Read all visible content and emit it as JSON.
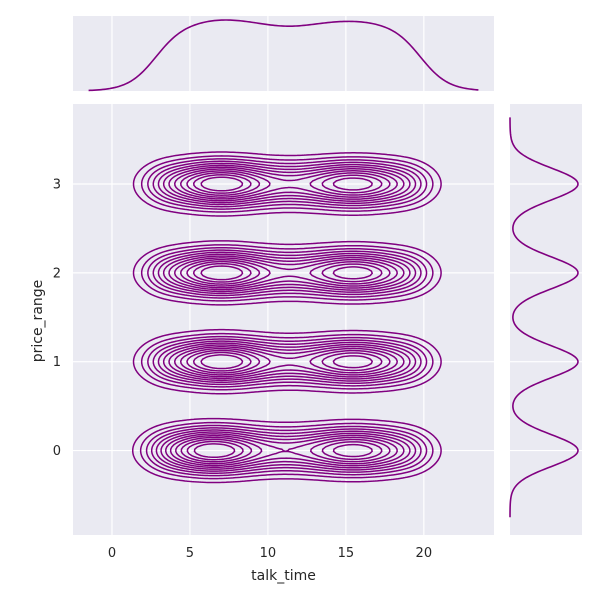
{
  "chart_data": {
    "type": "kde-jointplot",
    "x_variable": "talk_time",
    "y_variable": "price_range",
    "xlabel": "talk_time",
    "ylabel": "price_range",
    "xlim": [
      -2.5,
      24.5
    ],
    "ylim": [
      -0.95,
      3.9
    ],
    "x_ticks": [
      0,
      5,
      10,
      15,
      20
    ],
    "y_ticks": [
      0,
      1,
      2,
      3
    ],
    "grid": true,
    "background": "#eaeaf2",
    "line_color": "#800080",
    "contour_levels": 12,
    "price_range_levels": [
      0,
      1,
      2,
      3
    ],
    "joint_density_peaks": [
      {
        "price_range": 0,
        "talk_time": [
          6.5,
          15.5
        ]
      },
      {
        "price_range": 1,
        "talk_time": [
          7.0,
          15.5
        ]
      },
      {
        "price_range": 2,
        "talk_time": [
          7.0,
          15.5
        ]
      },
      {
        "price_range": 3,
        "talk_time": [
          7.0,
          15.5
        ]
      }
    ],
    "marginal_x": {
      "support": [
        -1.5,
        23.5
      ],
      "peaks": [
        7.0,
        15.5
      ],
      "relative_density": "flat plateau between ~4 and ~19"
    },
    "marginal_y": {
      "peaks": [
        0,
        1,
        2,
        3
      ],
      "support": [
        -0.75,
        3.75
      ]
    }
  }
}
